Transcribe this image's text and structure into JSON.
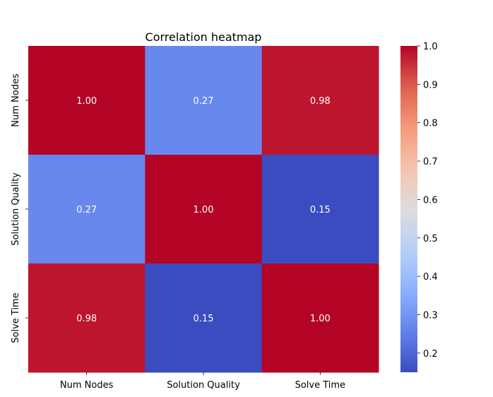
{
  "chart_data": {
    "type": "heatmap",
    "title": "Correlation heatmap",
    "x_categories": [
      "Num Nodes",
      "Solution Quality",
      "Solve Time"
    ],
    "y_categories": [
      "Num Nodes",
      "Solution Quality",
      "Solve Time"
    ],
    "values": [
      [
        1.0,
        0.27,
        0.98
      ],
      [
        0.27,
        1.0,
        0.15
      ],
      [
        0.98,
        0.15,
        1.0
      ]
    ],
    "value_format": "0.00",
    "colormap": "coolwarm",
    "colorbar": {
      "min": 0.15,
      "max": 1.0,
      "ticks": [
        "0.2",
        "0.3",
        "0.4",
        "0.5",
        "0.6",
        "0.7",
        "0.8",
        "0.9",
        "1.0"
      ]
    },
    "colors": {
      "cold": "#3b4cc0",
      "mid": "#dddddd",
      "warm": "#b40426",
      "label_light": "#ffffff",
      "label_dark": "#000000"
    }
  }
}
